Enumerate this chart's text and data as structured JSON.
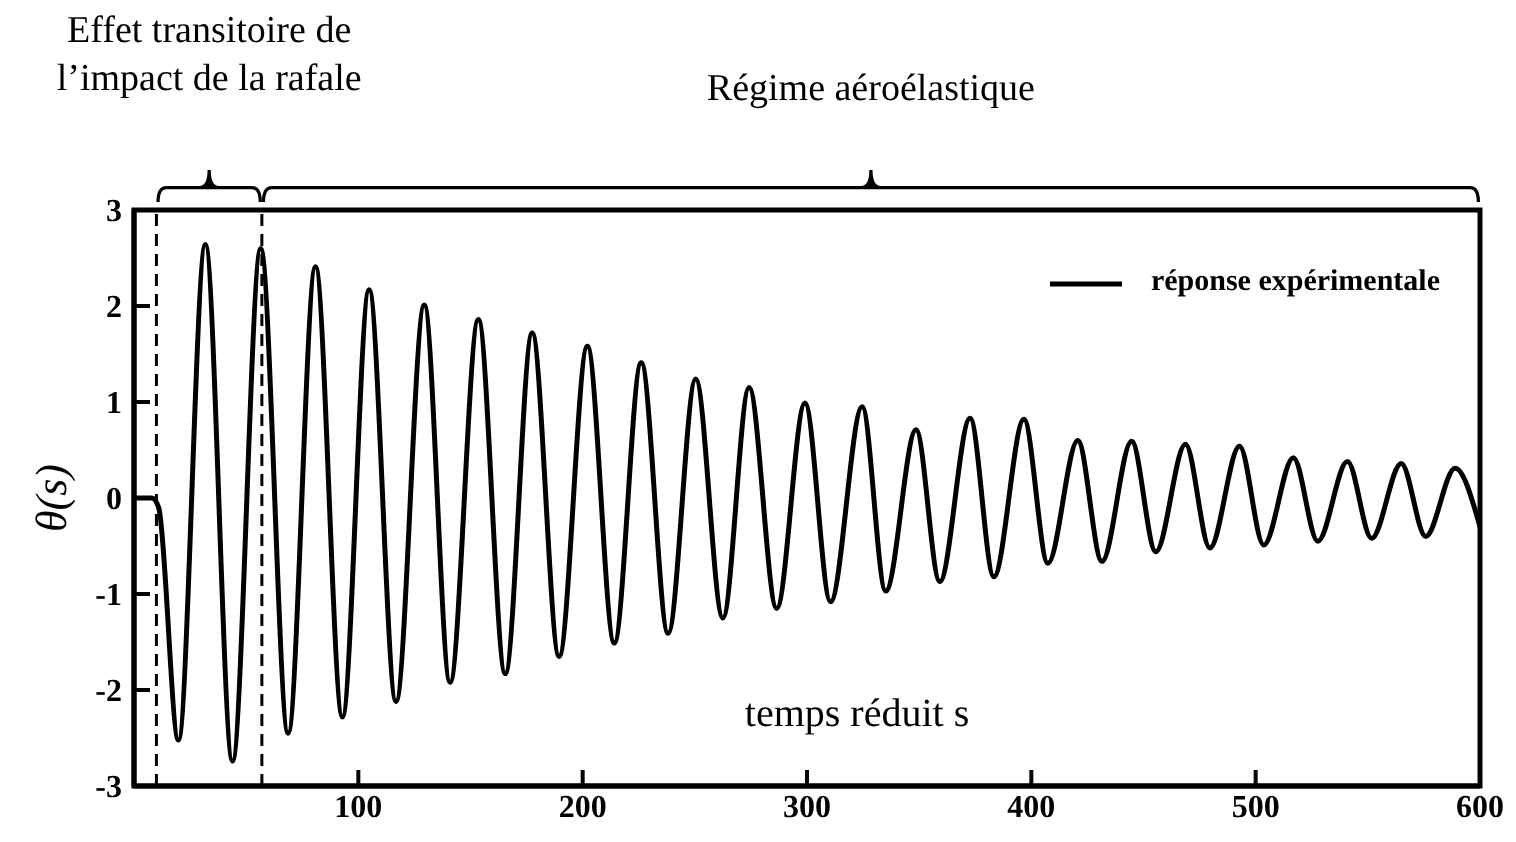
{
  "chart_data": {
    "type": "line",
    "xlabel": "temps réduit s",
    "ylabel": "θ(s)",
    "annotations": [
      "Effet transitoire de l’impact de la rafale",
      "Régime aéroélastique"
    ],
    "x": [
      0,
      8,
      11,
      19.8,
      31.8,
      43.9,
      56.5,
      68.7,
      80.9,
      92.9,
      104.8,
      116.8,
      129.4,
      140.9,
      153.5,
      165.5,
      177.5,
      189.5,
      202.1,
      214.1,
      226.1,
      238.1,
      250.4,
      262.5,
      274.2,
      286.5,
      299.1,
      310.5,
      324.6,
      335.1,
      348.6,
      359.2,
      372.7,
      383.3,
      396.7,
      407.4,
      420.7,
      431.5,
      444.7,
      455.5,
      468.7,
      479.6,
      492.8,
      503.6,
      516.8,
      527.7,
      540.9,
      551.7,
      564.9,
      575.8,
      588.9,
      600
    ],
    "series": [
      {
        "name": "réponse expérimentale",
        "color": "#000000",
        "values": [
          0,
          0,
          -0.1,
          -2.52,
          2.64,
          -2.74,
          2.6,
          -2.45,
          2.41,
          -2.28,
          2.17,
          -2.12,
          2.01,
          -1.92,
          1.86,
          -1.83,
          1.72,
          -1.65,
          1.58,
          -1.51,
          1.41,
          -1.41,
          1.24,
          -1.25,
          1.15,
          -1.15,
          0.99,
          -1.08,
          0.95,
          -0.97,
          0.71,
          -0.87,
          0.83,
          -0.82,
          0.82,
          -0.68,
          0.6,
          -0.66,
          0.59,
          -0.56,
          0.56,
          -0.52,
          0.54,
          -0.49,
          0.42,
          -0.45,
          0.38,
          -0.42,
          0.36,
          -0.4,
          0.31,
          -0.3
        ]
      }
    ],
    "xlim": [
      0,
      600
    ],
    "xticks": [
      100,
      200,
      300,
      400,
      500,
      600
    ],
    "ylim": [
      -3,
      3
    ],
    "yticks": [
      -3,
      -2,
      -1,
      0,
      1,
      2,
      3
    ],
    "ref_lines": [
      {
        "axis": "x",
        "value": 10,
        "line_style": "dashed",
        "color": "#000000"
      },
      {
        "axis": "x",
        "value": 57,
        "line_style": "dashed",
        "color": "#000000"
      }
    ],
    "grid": false,
    "legend": "top right",
    "marker": "none",
    "line_style": "solid"
  }
}
